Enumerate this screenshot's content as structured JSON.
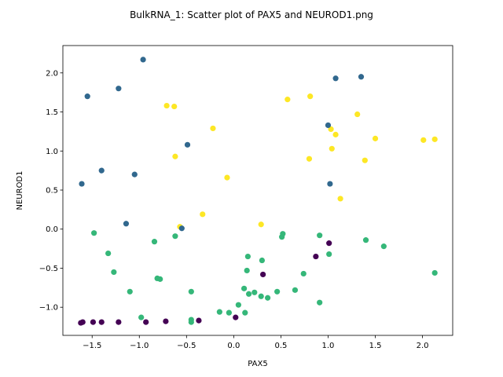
{
  "chart_data": {
    "type": "scatter",
    "title": "BulkRNA_1: Scatter plot of PAX5 and NEUROD1.png",
    "xlabel": "PAX5",
    "ylabel": "NEUROD1",
    "xlim": [
      -1.81,
      2.32
    ],
    "ylim": [
      -1.36,
      2.35
    ],
    "xticks": [
      -1.5,
      -1.0,
      -0.5,
      0.0,
      0.5,
      1.0,
      1.5,
      2.0
    ],
    "yticks": [
      -1.0,
      -0.5,
      0.0,
      0.5,
      1.0,
      1.5,
      2.0
    ],
    "grid": false,
    "series": [
      {
        "color": "#fde725",
        "points": [
          [
            -0.71,
            1.58
          ],
          [
            -0.63,
            1.57
          ],
          [
            -0.22,
            1.29
          ],
          [
            -0.62,
            0.93
          ],
          [
            -0.07,
            0.66
          ],
          [
            -0.57,
            0.03
          ],
          [
            -0.33,
            0.19
          ],
          [
            0.29,
            0.06
          ],
          [
            0.57,
            1.66
          ],
          [
            0.81,
            1.7
          ],
          [
            1.03,
            1.28
          ],
          [
            1.08,
            1.21
          ],
          [
            1.04,
            1.03
          ],
          [
            0.8,
            0.9
          ],
          [
            1.13,
            0.39
          ],
          [
            1.31,
            1.47
          ],
          [
            1.5,
            1.16
          ],
          [
            1.39,
            0.88
          ],
          [
            2.01,
            1.14
          ],
          [
            2.13,
            1.15
          ]
        ]
      },
      {
        "color": "#31688e",
        "points": [
          [
            -1.55,
            1.7
          ],
          [
            -1.22,
            1.8
          ],
          [
            -0.96,
            2.17
          ],
          [
            -1.4,
            0.75
          ],
          [
            -1.05,
            0.7
          ],
          [
            -1.61,
            0.58
          ],
          [
            -1.14,
            0.07
          ],
          [
            -0.49,
            1.08
          ],
          [
            -0.55,
            0.01
          ],
          [
            1.0,
            1.33
          ],
          [
            1.08,
            1.93
          ],
          [
            1.35,
            1.95
          ],
          [
            1.02,
            0.58
          ]
        ]
      },
      {
        "color": "#35b779",
        "points": [
          [
            -1.48,
            -0.05
          ],
          [
            -1.33,
            -0.31
          ],
          [
            -1.27,
            -0.55
          ],
          [
            -1.1,
            -0.8
          ],
          [
            -0.84,
            -0.16
          ],
          [
            -0.81,
            -0.63
          ],
          [
            -0.78,
            -0.64
          ],
          [
            -0.62,
            -0.09
          ],
          [
            -0.45,
            -0.8
          ],
          [
            -0.98,
            -1.13
          ],
          [
            -0.45,
            -1.16
          ],
          [
            -0.45,
            -1.19
          ],
          [
            -0.15,
            -1.06
          ],
          [
            -0.05,
            -1.07
          ],
          [
            0.05,
            -0.97
          ],
          [
            0.12,
            -1.07
          ],
          [
            0.11,
            -0.76
          ],
          [
            0.14,
            -0.53
          ],
          [
            0.16,
            -0.83
          ],
          [
            0.15,
            -0.35
          ],
          [
            0.22,
            -0.81
          ],
          [
            0.29,
            -0.86
          ],
          [
            0.3,
            -0.4
          ],
          [
            0.36,
            -0.88
          ],
          [
            0.46,
            -0.8
          ],
          [
            0.51,
            -0.1
          ],
          [
            0.52,
            -0.06
          ],
          [
            0.65,
            -0.78
          ],
          [
            0.74,
            -0.57
          ],
          [
            0.91,
            -0.08
          ],
          [
            0.91,
            -0.94
          ],
          [
            1.01,
            -0.32
          ],
          [
            1.4,
            -0.14
          ],
          [
            1.59,
            -0.22
          ],
          [
            2.13,
            -0.56
          ]
        ]
      },
      {
        "color": "#440154",
        "points": [
          [
            -1.62,
            -1.2
          ],
          [
            -1.6,
            -1.19
          ],
          [
            -1.49,
            -1.19
          ],
          [
            -1.4,
            -1.19
          ],
          [
            -1.22,
            -1.19
          ],
          [
            -0.93,
            -1.19
          ],
          [
            -0.72,
            -1.18
          ],
          [
            -0.37,
            -1.17
          ],
          [
            0.02,
            -1.13
          ],
          [
            0.31,
            -0.58
          ],
          [
            0.87,
            -0.35
          ],
          [
            1.01,
            -0.18
          ]
        ]
      }
    ]
  }
}
